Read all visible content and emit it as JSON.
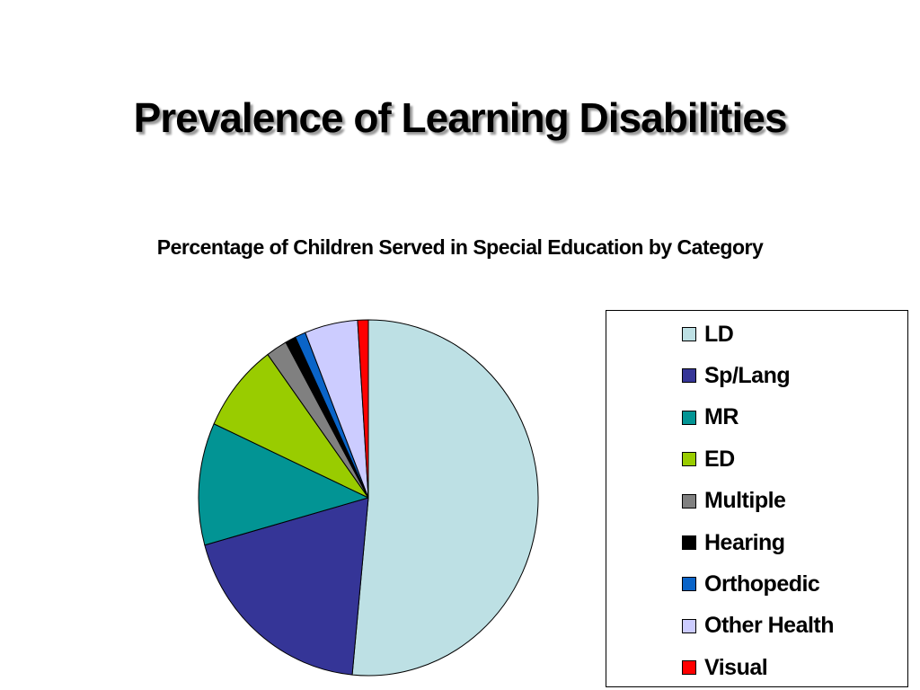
{
  "slide": {
    "title": "Prevalence of Learning Disabilities"
  },
  "chart_data": {
    "type": "pie",
    "subtitle": "Percentage of Children Served in Special Education by Category",
    "categories": [
      "LD",
      "Sp/Lang",
      "MR",
      "ED",
      "Multiple",
      "Hearing",
      "Orthopedic",
      "Other Health",
      "Visual"
    ],
    "values": [
      51,
      19,
      11,
      8,
      2,
      1,
      1,
      5,
      1
    ],
    "unit": "percent",
    "colors": [
      "#bde0e4",
      "#353597",
      "#029494",
      "#99cc00",
      "#808080",
      "#000000",
      "#0a64c8",
      "#ccccff",
      "#ff0000"
    ],
    "start_angle": "12 o'clock",
    "direction": "clockwise",
    "legend": {
      "position": "right",
      "border": true
    }
  }
}
